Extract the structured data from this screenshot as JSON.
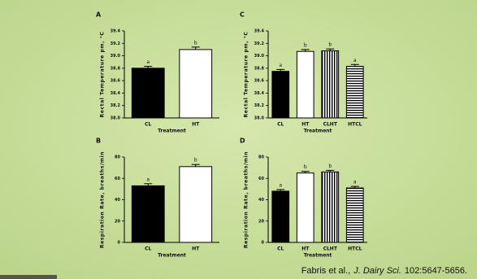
{
  "chart_data": [
    {
      "type": "bar",
      "panel": "A",
      "y_label": "Rectal Temperature pm, °C",
      "x_label": "Treatment",
      "categories": [
        "CL",
        "HT"
      ],
      "values": [
        38.8,
        39.1
      ],
      "errors": [
        0.03,
        0.04
      ],
      "letters": [
        "a",
        "b"
      ],
      "fills": [
        "solid",
        "open"
      ],
      "ylim": [
        38.0,
        39.4
      ],
      "yticks": [
        {
          "value": 38.0,
          "label": "38.0"
        },
        {
          "value": 38.2,
          "label": "38.2"
        },
        {
          "value": 38.4,
          "label": "38.4"
        },
        {
          "value": 38.6,
          "label": "38.6"
        },
        {
          "value": 38.8,
          "label": "38.8"
        },
        {
          "value": 39.0,
          "label": "39.0"
        },
        {
          "value": 39.2,
          "label": "39.2"
        },
        {
          "value": 39.4,
          "label": "39.4"
        }
      ]
    },
    {
      "type": "bar",
      "panel": "B",
      "y_label": "Respiration Rate, breaths/min",
      "x_label": "Treatment",
      "categories": [
        "CL",
        "HT"
      ],
      "values": [
        53,
        71
      ],
      "errors": [
        2,
        2
      ],
      "letters": [
        "a",
        "b"
      ],
      "fills": [
        "solid",
        "open"
      ],
      "ylim": [
        0,
        80
      ],
      "yticks": [
        0,
        20,
        40,
        60,
        80
      ]
    },
    {
      "type": "bar",
      "panel": "C",
      "y_label": "Rectal Temperature pm, °C",
      "x_label": "Treatment",
      "categories": [
        "CL",
        "HT",
        "CLHT",
        "HTCL"
      ],
      "values": [
        38.75,
        39.07,
        39.08,
        38.83
      ],
      "errors": [
        0.03,
        0.03,
        0.03,
        0.03
      ],
      "letters": [
        "a",
        "b",
        "b",
        "a"
      ],
      "fills": [
        "solid",
        "open",
        "vertical-stripes",
        "horizontal-stripes"
      ],
      "ylim": [
        38.0,
        39.4
      ],
      "yticks": [
        {
          "value": 38.0,
          "label": "38.0"
        },
        {
          "value": 38.2,
          "label": "38.2"
        },
        {
          "value": 38.4,
          "label": "38.4"
        },
        {
          "value": 38.6,
          "label": "38.6"
        },
        {
          "value": 38.8,
          "label": "38.8"
        },
        {
          "value": 39.0,
          "label": "39.0"
        },
        {
          "value": 39.2,
          "label": "39.2"
        },
        {
          "value": 39.4,
          "label": "39.4"
        }
      ]
    },
    {
      "type": "bar",
      "panel": "D",
      "y_label": "Respiration Rate, breaths/min",
      "x_label": "Treatment",
      "categories": [
        "CL",
        "HT",
        "CLHT",
        "HTCL"
      ],
      "values": [
        48,
        65,
        66,
        51
      ],
      "errors": [
        1.5,
        1.5,
        1.5,
        1.5
      ],
      "letters": [
        "a",
        "b",
        "b",
        "a"
      ],
      "fills": [
        "solid",
        "open",
        "vertical-stripes",
        "horizontal-stripes"
      ],
      "ylim": [
        0,
        80
      ],
      "yticks": [
        0,
        20,
        40,
        60,
        80
      ]
    }
  ],
  "citation": {
    "authors": "Fabris et al.,",
    "journal": "J. Dairy Sci.",
    "ref": "102:5647-5656."
  }
}
